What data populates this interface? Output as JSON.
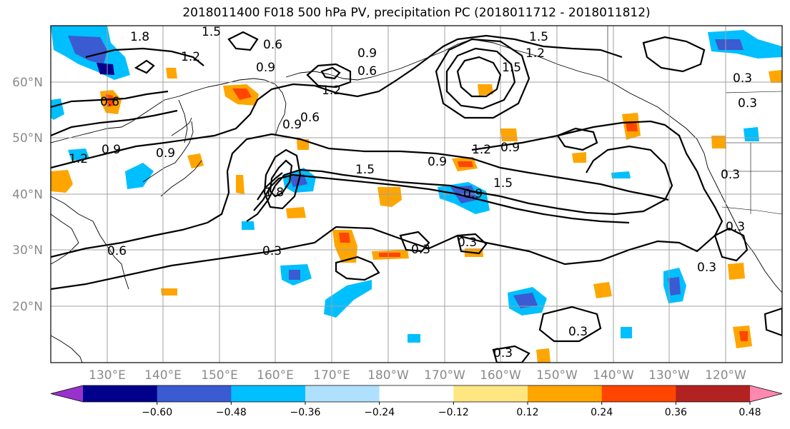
{
  "title": "2018011400 F018 500 hPa PV, precipitation PC (2018011712 - 2018011812)",
  "lat_labels": [
    "60°N",
    "50°N",
    "40°N",
    "30°N",
    "20°N"
  ],
  "lon_labels": [
    "130°E",
    "140°E",
    "150°E",
    "160°E",
    "170°E",
    "180°W",
    "170°W",
    "160°W",
    "150°W",
    "140°W",
    "130°W",
    "120°W"
  ],
  "colorbar": {
    "ticks": [
      "−0.60",
      "−0.48",
      "−0.36",
      "−0.24",
      "−0.12",
      "0.12",
      "0.24",
      "0.36",
      "0.48",
      "0.60"
    ],
    "colors": [
      "#9932cc",
      "#00008b",
      "#3a5bd1",
      "#00bfff",
      "#b0e0ff",
      "#ffffff",
      "#ffe680",
      "#ffa500",
      "#ff4500",
      "#b22222",
      "#ff88b0"
    ]
  },
  "contour_labels": [
    "1.8",
    "1.5",
    "1.2",
    "0.6",
    "0.9",
    "0.9",
    "0.6",
    "1.2",
    "0.6",
    "0.6",
    "0.9",
    "1.5",
    "1.2",
    "1.5",
    "0.3",
    "0.9",
    "1.2",
    "0.9",
    "1.5",
    "1.8",
    "1.2",
    "0.9",
    "0.9",
    "0.3",
    "0.3",
    "0.6",
    "0.3",
    "0.3",
    "0.3",
    "0.3",
    "0.3",
    "0.3",
    "0.3",
    "0.9",
    "1.5"
  ]
}
